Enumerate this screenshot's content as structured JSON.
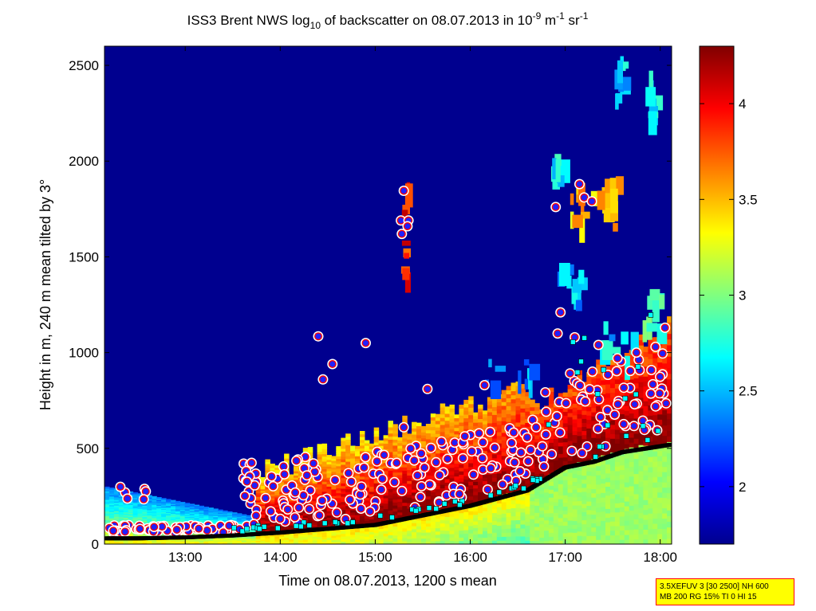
{
  "chart_data": {
    "type": "heatmap",
    "title": "ISS3 Brent NWS log10 of backscatter on 08.07.2013 in 10-9 m-1 sr-1",
    "title_parts": {
      "a": "ISS3 Brent NWS log",
      "a_sub": "10",
      "b": " of backscatter on 08.07.2013 in 10",
      "b_sup": "-9",
      "c": " m",
      "c_sup": "-1",
      "d": " sr",
      "d_sup": "-1"
    },
    "xlabel": "Time on 08.07.2013, 1200 s mean",
    "ylabel": "Height in m, 240 m mean tilted by 3°",
    "x_ticks": [
      "13:00",
      "14:00",
      "15:00",
      "16:00",
      "17:00",
      "18:00"
    ],
    "x_tick_hours": [
      13,
      14,
      15,
      16,
      17,
      18
    ],
    "xlim_hours": [
      12.15,
      18.12
    ],
    "y_ticks": [
      "0",
      "500",
      "1000",
      "1500",
      "2000",
      "2500"
    ],
    "y_tick_values": [
      0,
      500,
      1000,
      1500,
      2000,
      2500
    ],
    "ylim": [
      0,
      2600
    ],
    "colorbar": {
      "ticks": [
        "2",
        "2.5",
        "3",
        "3.5",
        "4"
      ],
      "tick_values": [
        2,
        2.5,
        3,
        3.5,
        4
      ],
      "range": [
        1.7,
        4.3
      ],
      "colormap": "jet"
    },
    "grid": false,
    "layer_heights": {
      "time_hours": [
        12.15,
        12.5,
        13.0,
        13.5,
        14.0,
        14.5,
        15.0,
        15.3,
        15.6,
        16.0,
        16.3,
        16.6,
        16.8,
        17.0,
        17.3,
        17.6,
        18.12
      ],
      "height_m": [
        30,
        30,
        35,
        45,
        60,
        80,
        100,
        130,
        160,
        200,
        240,
        280,
        340,
        400,
        430,
        480,
        520
      ]
    },
    "cloud_base_points": [
      {
        "x": 15.3,
        "y": 1845
      },
      {
        "x": 15.27,
        "y": 1690
      },
      {
        "x": 15.35,
        "y": 1690
      },
      {
        "x": 15.28,
        "y": 1620
      },
      {
        "x": 15.34,
        "y": 1660
      },
      {
        "x": 14.4,
        "y": 1085
      },
      {
        "x": 14.9,
        "y": 1050
      },
      {
        "x": 14.55,
        "y": 940
      },
      {
        "x": 14.45,
        "y": 860
      },
      {
        "x": 15.55,
        "y": 810
      },
      {
        "x": 16.15,
        "y": 830
      },
      {
        "x": 15.3,
        "y": 610
      },
      {
        "x": 16.9,
        "y": 1760
      },
      {
        "x": 17.15,
        "y": 1880
      },
      {
        "x": 17.2,
        "y": 1810
      },
      {
        "x": 17.28,
        "y": 1790
      },
      {
        "x": 16.95,
        "y": 1210
      },
      {
        "x": 16.92,
        "y": 1100
      },
      {
        "x": 17.1,
        "y": 1080
      },
      {
        "x": 17.35,
        "y": 1040
      },
      {
        "x": 17.55,
        "y": 970
      },
      {
        "x": 17.75,
        "y": 1000
      },
      {
        "x": 17.95,
        "y": 1030
      },
      {
        "x": 18.05,
        "y": 1130
      }
    ],
    "info_box": [
      "3.5XEFUV 3 [30 2500] NH 600",
      "MB 200 RG 15% TI 0 HI 15"
    ]
  },
  "colors": {
    "plot_background": "#00008f",
    "marker_face": "#2020ff",
    "marker_edge": "#ff0000",
    "marker_ring": "#ffffff",
    "layer_marker": "#000000",
    "square_marker": "#00ffff",
    "info_box_bg": "#ffff00",
    "info_box_border": "#ff0000"
  }
}
